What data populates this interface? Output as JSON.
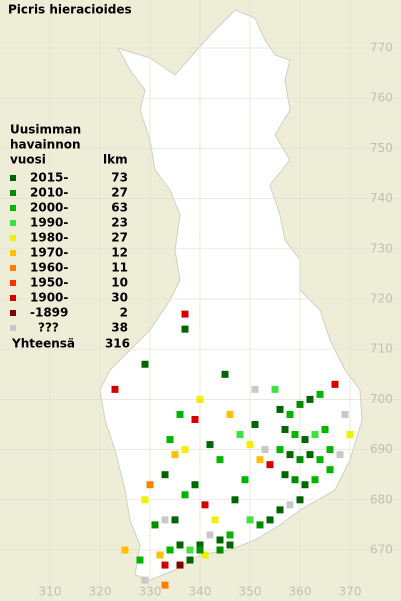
{
  "title": "Picris hieracioides",
  "legend": {
    "heading": [
      "Uusimman",
      "havainnon",
      "vuosi"
    ],
    "count_heading": "lkm",
    "rows": [
      {
        "label": "2015-",
        "count": 73,
        "color": "#006400"
      },
      {
        "label": "2010-",
        "count": 27,
        "color": "#008c00"
      },
      {
        "label": "2000-",
        "count": 63,
        "color": "#00b400"
      },
      {
        "label": "1990-",
        "count": 23,
        "color": "#40e040"
      },
      {
        "label": "1980-",
        "count": 27,
        "color": "#f0f000"
      },
      {
        "label": "1970-",
        "count": 12,
        "color": "#ffc000"
      },
      {
        "label": "1960-",
        "count": 11,
        "color": "#ff8000"
      },
      {
        "label": "1950-",
        "count": 10,
        "color": "#ff3000"
      },
      {
        "label": "1900-",
        "count": 30,
        "color": "#d00000"
      },
      {
        "label": "-1899",
        "count": 2,
        "color": "#800000"
      },
      {
        "label": "???",
        "count": 38,
        "color": "#c8c8c8"
      }
    ],
    "total_label": "Yhteensä",
    "total": 316
  },
  "grid": {
    "x_ticks": [
      310,
      320,
      330,
      340,
      350,
      360,
      370
    ],
    "y_ticks": [
      670,
      680,
      690,
      700,
      710,
      720,
      730,
      740,
      750,
      760,
      770
    ]
  },
  "observations": [
    [
      356,
      698,
      0
    ],
    [
      358,
      697,
      2
    ],
    [
      360,
      699,
      1
    ],
    [
      362,
      700,
      0
    ],
    [
      364,
      701,
      2
    ],
    [
      357,
      694,
      0
    ],
    [
      359,
      693,
      2
    ],
    [
      361,
      692,
      0
    ],
    [
      363,
      693,
      3
    ],
    [
      365,
      694,
      2
    ],
    [
      356,
      690,
      2
    ],
    [
      358,
      689,
      0
    ],
    [
      360,
      688,
      1
    ],
    [
      362,
      689,
      0
    ],
    [
      364,
      688,
      2
    ],
    [
      366,
      690,
      2
    ],
    [
      357,
      685,
      0
    ],
    [
      359,
      684,
      1
    ],
    [
      361,
      683,
      0
    ],
    [
      363,
      684,
      2
    ],
    [
      360,
      680,
      0
    ],
    [
      358,
      679,
      10
    ],
    [
      354,
      687,
      8
    ],
    [
      352,
      688,
      5
    ],
    [
      353,
      690,
      10
    ],
    [
      351,
      695,
      0
    ],
    [
      350,
      691,
      4
    ],
    [
      349,
      684,
      2
    ],
    [
      347,
      680,
      0
    ],
    [
      354,
      676,
      0
    ],
    [
      352,
      675,
      1
    ],
    [
      350,
      676,
      3
    ],
    [
      356,
      678,
      0
    ],
    [
      346,
      673,
      2
    ],
    [
      344,
      672,
      0
    ],
    [
      342,
      673,
      10
    ],
    [
      340,
      671,
      0
    ],
    [
      338,
      670,
      3
    ],
    [
      336,
      671,
      0
    ],
    [
      334,
      670,
      2
    ],
    [
      332,
      669,
      5
    ],
    [
      333,
      667,
      8
    ],
    [
      336,
      667,
      9
    ],
    [
      338,
      668,
      0
    ],
    [
      341,
      669,
      4
    ],
    [
      344,
      670,
      1
    ],
    [
      346,
      671,
      0
    ],
    [
      335,
      676,
      0
    ],
    [
      333,
      676,
      10
    ],
    [
      331,
      675,
      1
    ],
    [
      337,
      681,
      2
    ],
    [
      339,
      683,
      0
    ],
    [
      341,
      679,
      8
    ],
    [
      343,
      676,
      4
    ],
    [
      329,
      680,
      4
    ],
    [
      330,
      683,
      6
    ],
    [
      333,
      685,
      0
    ],
    [
      335,
      689,
      5
    ],
    [
      334,
      692,
      2
    ],
    [
      337,
      690,
      4
    ],
    [
      342,
      691,
      0
    ],
    [
      344,
      688,
      2
    ],
    [
      339,
      696,
      8
    ],
    [
      346,
      697,
      5
    ],
    [
      348,
      693,
      3
    ],
    [
      336,
      697,
      2
    ],
    [
      340,
      700,
      4
    ],
    [
      345,
      705,
      0
    ],
    [
      337,
      717,
      8
    ],
    [
      337,
      714,
      0
    ],
    [
      329,
      707,
      0
    ],
    [
      323,
      702,
      8
    ],
    [
      325,
      670,
      5
    ],
    [
      328,
      668,
      2
    ],
    [
      329,
      664,
      10
    ],
    [
      333,
      663,
      6
    ],
    [
      340,
      670,
      1
    ],
    [
      369,
      697,
      10
    ],
    [
      368,
      689,
      10
    ],
    [
      366,
      686,
      2
    ],
    [
      370,
      693,
      4
    ],
    [
      367,
      703,
      8
    ],
    [
      351,
      702,
      10
    ],
    [
      355,
      702,
      3
    ]
  ]
}
